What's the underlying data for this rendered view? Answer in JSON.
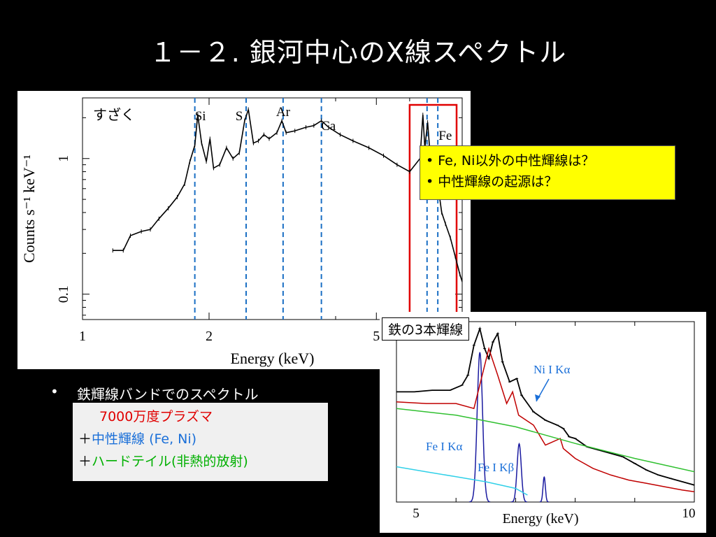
{
  "slide": {
    "title": "１－２. 銀河中心のX線スペクトル",
    "callout_lines": [
      "• Fe, Ni以外の中性輝線は？",
      "• 中性輝線の起源は？"
    ],
    "bullet_marker": "•",
    "bullet_text": "鉄輝線バンドでのスペクトル",
    "model_lines": [
      {
        "prefix": "",
        "text": "7000万度プラズマ",
        "color": "#e00000"
      },
      {
        "prefix": "＋",
        "text": "中性輝線",
        "suffix": " (Fe, Ni)",
        "color": "#1a6fd8"
      },
      {
        "prefix": "＋",
        "text": "ハードテイル(非熱的放射)",
        "suffix": "",
        "color": "#00b000"
      }
    ],
    "iron_label": "鉄の3本輝線"
  },
  "chart_data": [
    {
      "type": "line",
      "instrument_label": "すざく",
      "xlabel": "Energy (keV)",
      "ylabel": "Counts s⁻¹ keV⁻¹",
      "xscale": "log",
      "yscale": "log",
      "xlim": [
        1.0,
        8.0
      ],
      "ylim": [
        0.065,
        2.8
      ],
      "xticks": [
        1,
        2,
        5
      ],
      "xtick_labels": [
        "1",
        "2",
        "5"
      ],
      "yticks": [
        0.1,
        1
      ],
      "ytick_labels": [
        "0.1",
        "1"
      ],
      "line_markers": [
        {
          "label": "Si",
          "energy": 1.85
        },
        {
          "label": "S",
          "energy": 2.45
        },
        {
          "label": "Ar",
          "energy": 3.0
        },
        {
          "label": "Ca",
          "energy": 3.7
        },
        {
          "label": "Fe",
          "energy": 6.6
        },
        {
          "energy": 7.0
        }
      ],
      "highlight_range": [
        6.0,
        8.0
      ],
      "series": [
        {
          "values": [
            [
              1.18,
              0.21
            ],
            [
              1.25,
              0.21
            ],
            [
              1.3,
              0.27
            ],
            [
              1.38,
              0.29
            ],
            [
              1.45,
              0.3
            ],
            [
              1.52,
              0.36
            ],
            [
              1.6,
              0.43
            ],
            [
              1.68,
              0.52
            ],
            [
              1.75,
              0.65
            ],
            [
              1.8,
              0.95
            ],
            [
              1.85,
              1.25
            ],
            [
              1.88,
              2.1
            ],
            [
              1.92,
              1.3
            ],
            [
              1.97,
              0.95
            ],
            [
              2.01,
              1.4
            ],
            [
              2.05,
              0.85
            ],
            [
              2.12,
              0.9
            ],
            [
              2.2,
              1.2
            ],
            [
              2.28,
              1.0
            ],
            [
              2.36,
              1.1
            ],
            [
              2.43,
              1.9
            ],
            [
              2.48,
              2.3
            ],
            [
              2.55,
              1.3
            ],
            [
              2.62,
              1.35
            ],
            [
              2.7,
              1.5
            ],
            [
              2.78,
              1.4
            ],
            [
              2.9,
              1.55
            ],
            [
              2.98,
              1.9
            ],
            [
              3.05,
              1.55
            ],
            [
              3.2,
              1.6
            ],
            [
              3.4,
              1.7
            ],
            [
              3.55,
              1.75
            ],
            [
              3.7,
              1.9
            ],
            [
              3.85,
              1.7
            ],
            [
              4.1,
              1.5
            ],
            [
              4.4,
              1.35
            ],
            [
              4.8,
              1.2
            ],
            [
              5.2,
              1.05
            ],
            [
              5.6,
              0.9
            ],
            [
              6.0,
              0.8
            ],
            [
              6.35,
              1.0
            ],
            [
              6.45,
              2.1
            ],
            [
              6.52,
              1.2
            ],
            [
              6.62,
              1.85
            ],
            [
              6.72,
              1.0
            ],
            [
              6.85,
              0.7
            ],
            [
              6.95,
              0.95
            ],
            [
              7.05,
              0.55
            ],
            [
              7.15,
              0.4
            ],
            [
              7.3,
              0.33
            ],
            [
              7.5,
              0.26
            ],
            [
              7.7,
              0.19
            ],
            [
              7.9,
              0.14
            ],
            [
              8.1,
              0.11
            ],
            [
              8.3,
              0.09
            ],
            [
              8.5,
              0.07
            ]
          ]
        }
      ]
    },
    {
      "type": "line",
      "xlabel": "Energy (keV)",
      "xlim": [
        5.0,
        10.0
      ],
      "xticks": [
        5,
        10
      ],
      "xtick_labels": [
        "5",
        "10"
      ],
      "annotations": [
        "Ni I Kα",
        "Fe I Kα",
        "Fe I Kβ"
      ],
      "series": [
        {
          "name": "data",
          "color": "#000000",
          "values": [
            [
              5.0,
              0.62
            ],
            [
              5.3,
              0.62
            ],
            [
              5.6,
              0.63
            ],
            [
              5.9,
              0.63
            ],
            [
              6.1,
              0.66
            ],
            [
              6.2,
              0.72
            ],
            [
              6.3,
              0.9
            ],
            [
              6.4,
              1.0
            ],
            [
              6.48,
              0.88
            ],
            [
              6.55,
              0.82
            ],
            [
              6.62,
              0.92
            ],
            [
              6.7,
              0.97
            ],
            [
              6.78,
              0.8
            ],
            [
              6.9,
              0.68
            ],
            [
              7.02,
              0.7
            ],
            [
              7.1,
              0.6
            ],
            [
              7.3,
              0.5
            ],
            [
              7.5,
              0.45
            ],
            [
              7.7,
              0.42
            ],
            [
              7.8,
              0.4
            ],
            [
              7.9,
              0.35
            ],
            [
              8.0,
              0.34
            ],
            [
              8.2,
              0.29
            ],
            [
              8.4,
              0.27
            ],
            [
              8.6,
              0.25
            ],
            [
              8.8,
              0.23
            ],
            [
              9.0,
              0.19
            ],
            [
              9.2,
              0.15
            ],
            [
              9.4,
              0.12
            ],
            [
              9.6,
              0.1
            ],
            [
              9.8,
              0.08
            ],
            [
              10.0,
              0.06
            ]
          ]
        },
        {
          "name": "plasma",
          "color": "#c00000",
          "values": [
            [
              5.0,
              0.56
            ],
            [
              5.5,
              0.55
            ],
            [
              6.0,
              0.55
            ],
            [
              6.3,
              0.52
            ],
            [
              6.55,
              0.88
            ],
            [
              6.7,
              0.72
            ],
            [
              6.85,
              0.55
            ],
            [
              6.95,
              0.62
            ],
            [
              7.05,
              0.48
            ],
            [
              7.3,
              0.42
            ],
            [
              7.5,
              0.3
            ],
            [
              7.75,
              0.34
            ],
            [
              7.8,
              0.28
            ],
            [
              7.9,
              0.25
            ],
            [
              8.0,
              0.22
            ],
            [
              8.1,
              0.2
            ],
            [
              8.3,
              0.16
            ],
            [
              8.6,
              0.12
            ],
            [
              8.9,
              0.09
            ],
            [
              9.2,
              0.07
            ],
            [
              9.5,
              0.05
            ],
            [
              9.8,
              0.03
            ],
            [
              10.0,
              0.02
            ]
          ]
        },
        {
          "name": "hard tail",
          "color": "#30c030",
          "values": [
            [
              5.0,
              0.52
            ],
            [
              6.0,
              0.48
            ],
            [
              7.0,
              0.41
            ],
            [
              8.0,
              0.31
            ],
            [
              9.0,
              0.22
            ],
            [
              10.0,
              0.14
            ]
          ]
        },
        {
          "name": "component",
          "color": "#30d0e8",
          "values": [
            [
              5.0,
              0.17
            ],
            [
              5.5,
              0.14
            ],
            [
              6.0,
              0.11
            ],
            [
              6.5,
              0.08
            ],
            [
              7.0,
              0.04
            ],
            [
              7.2,
              0.0
            ]
          ]
        }
      ],
      "gaussians": [
        {
          "center": 6.4,
          "peak": 0.9,
          "sigma": 0.045,
          "color": "#1a1aa0"
        },
        {
          "center": 7.06,
          "peak": 0.35,
          "sigma": 0.035,
          "color": "#1a1aa0"
        },
        {
          "center": 7.48,
          "peak": 0.15,
          "sigma": 0.02,
          "color": "#1a1aa0"
        }
      ]
    }
  ]
}
